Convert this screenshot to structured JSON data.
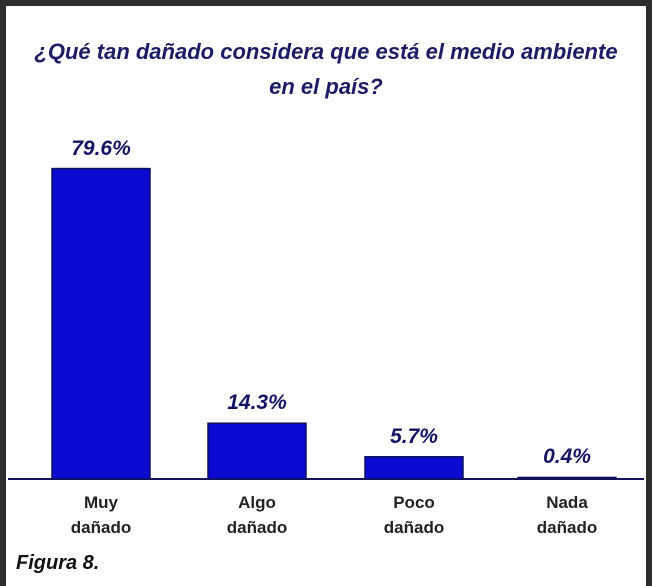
{
  "chart_data": {
    "type": "bar",
    "title": "¿Qué tan dañado considera que está el medio ambiente en el país?",
    "categories": [
      "Muy dañado",
      "Algo dañado",
      "Poco dañado",
      "Nada dañado"
    ],
    "values": [
      79.6,
      14.3,
      5.7,
      0.4
    ],
    "value_labels": [
      "79.6%",
      "14.3%",
      "5.7%",
      "0.4%"
    ],
    "color": "#0a0ad0",
    "caption": "Figura 8."
  }
}
